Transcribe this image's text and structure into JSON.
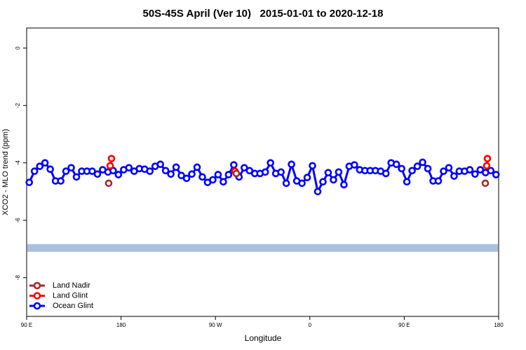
{
  "chart_data": {
    "type": "scatter",
    "title": "50S-45S April (Ver 10)   2015-01-01 to 2020-12-18",
    "x_label": "Longitude",
    "y_label": "XCO2 - MLO trend (ppm)",
    "xlim": [
      90,
      540
    ],
    "xticks": [
      {
        "value": 90,
        "label": "90 E"
      },
      180,
      {
        "value": 270,
        "label": "90 W"
      },
      {
        "value": 360,
        "label": "0"
      },
      {
        "value": 450,
        "label": "90 E"
      },
      {
        "value": 540,
        "label": "180"
      }
    ],
    "ylim": [
      -9.35,
      0.7
    ],
    "yticks": [
      0,
      -2,
      -4,
      -6,
      -8
    ],
    "band_range": [
      -6.83,
      -7.1
    ],
    "band_color": "#a9c0de",
    "legend": "bottom-left",
    "series": [
      {
        "name": "Land Nadir",
        "color": "#a52a2a",
        "connect": false,
        "x": [
          168.2,
          289.9,
          527.3
        ],
        "values": [
          -4.71,
          -4.37,
          -4.71
        ]
      },
      {
        "name": "Land Glint",
        "color": "#ff0000",
        "connect": false,
        "x": [
          169.6,
          170.9,
          288.6,
          528.6,
          529.3
        ],
        "values": [
          -4.1,
          -3.85,
          -4.29,
          -4.1,
          -3.85
        ]
      },
      {
        "name": "Ocean Glint",
        "color": "#0000ff",
        "connect": true,
        "x": [
          92.5,
          97.5,
          102.5,
          107.5,
          112.5,
          117.5,
          122.5,
          127.5,
          132.5,
          137.5,
          142.5,
          147.5,
          152.5,
          157.5,
          162.5,
          167.5,
          172.5,
          177.5,
          182.5,
          187.5,
          192.5,
          197.5,
          202.5,
          207.5,
          212.5,
          217.5,
          222.5,
          227.5,
          232.5,
          237.5,
          242.5,
          247.5,
          252.5,
          257.5,
          262.5,
          267.5,
          272.5,
          277.5,
          282.5,
          287.5,
          292.5,
          297.5,
          302.5,
          307.5,
          312.5,
          317.5,
          322.5,
          327.5,
          332.5,
          337.5,
          342.5,
          347.5,
          352.5,
          357.5,
          362.5,
          367.5,
          372.5,
          377.5,
          382.5,
          387.5,
          392.5,
          397.5,
          402.5,
          407.5,
          412.5,
          417.5,
          422.5,
          427.5,
          432.5,
          437.5,
          442.5,
          447.5,
          452.5,
          457.5,
          462.5,
          467.5,
          472.5,
          477.5,
          482.5,
          487.5,
          492.5,
          497.5,
          502.5,
          507.5,
          512.5,
          517.5,
          522.5,
          527.5,
          532.5,
          537.5
        ],
        "values": [
          -4.68,
          -4.29,
          -4.12,
          -4.0,
          -4.22,
          -4.63,
          -4.63,
          -4.29,
          -4.17,
          -4.49,
          -4.29,
          -4.29,
          -4.29,
          -4.39,
          -4.24,
          -4.32,
          -4.27,
          -4.41,
          -4.24,
          -4.17,
          -4.29,
          -4.2,
          -4.22,
          -4.29,
          -4.12,
          -4.05,
          -4.27,
          -4.39,
          -4.15,
          -4.44,
          -4.54,
          -4.39,
          -4.15,
          -4.49,
          -4.68,
          -4.59,
          -4.41,
          -4.66,
          -4.41,
          -4.07,
          -4.49,
          -4.17,
          -4.27,
          -4.37,
          -4.37,
          -4.32,
          -4.0,
          -4.37,
          -4.32,
          -4.71,
          -4.05,
          -4.63,
          -4.71,
          -4.51,
          -4.1,
          -5.0,
          -4.66,
          -4.34,
          -4.59,
          -4.32,
          -4.76,
          -4.12,
          -4.07,
          -4.24,
          -4.27,
          -4.27,
          -4.27,
          -4.29,
          -4.37,
          -4.0,
          -4.05,
          -4.2,
          -4.66,
          -4.27,
          -4.12,
          -3.98,
          -4.2,
          -4.63,
          -4.63,
          -4.29,
          -4.17,
          -4.46,
          -4.29,
          -4.29,
          -4.24,
          -4.39,
          -4.24,
          -4.34,
          -4.27,
          -4.41
        ]
      }
    ]
  }
}
